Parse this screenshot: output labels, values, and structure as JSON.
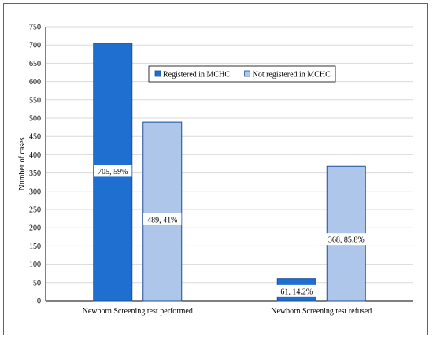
{
  "chart_data": {
    "type": "bar",
    "categories": [
      "Newborn Screening test performed",
      "Newborn Screening test refused"
    ],
    "series": [
      {
        "name": "Registered in MCHC",
        "values": [
          705,
          61
        ],
        "labels": [
          "705, 59%",
          "61, 14.2%"
        ],
        "color": "#1f6fd1"
      },
      {
        "name": "Not registered in MCHC",
        "values": [
          489,
          368
        ],
        "labels": [
          "489, 41%",
          "368, 85.8%"
        ],
        "color": "#aec6ea"
      }
    ],
    "xlabel": "",
    "ylabel": "Number of cases",
    "ylim": [
      0,
      750
    ],
    "yticks": [
      0,
      50,
      100,
      150,
      200,
      250,
      300,
      350,
      400,
      450,
      500,
      550,
      600,
      650,
      700,
      750
    ],
    "grid": true,
    "legend": "top-center"
  }
}
